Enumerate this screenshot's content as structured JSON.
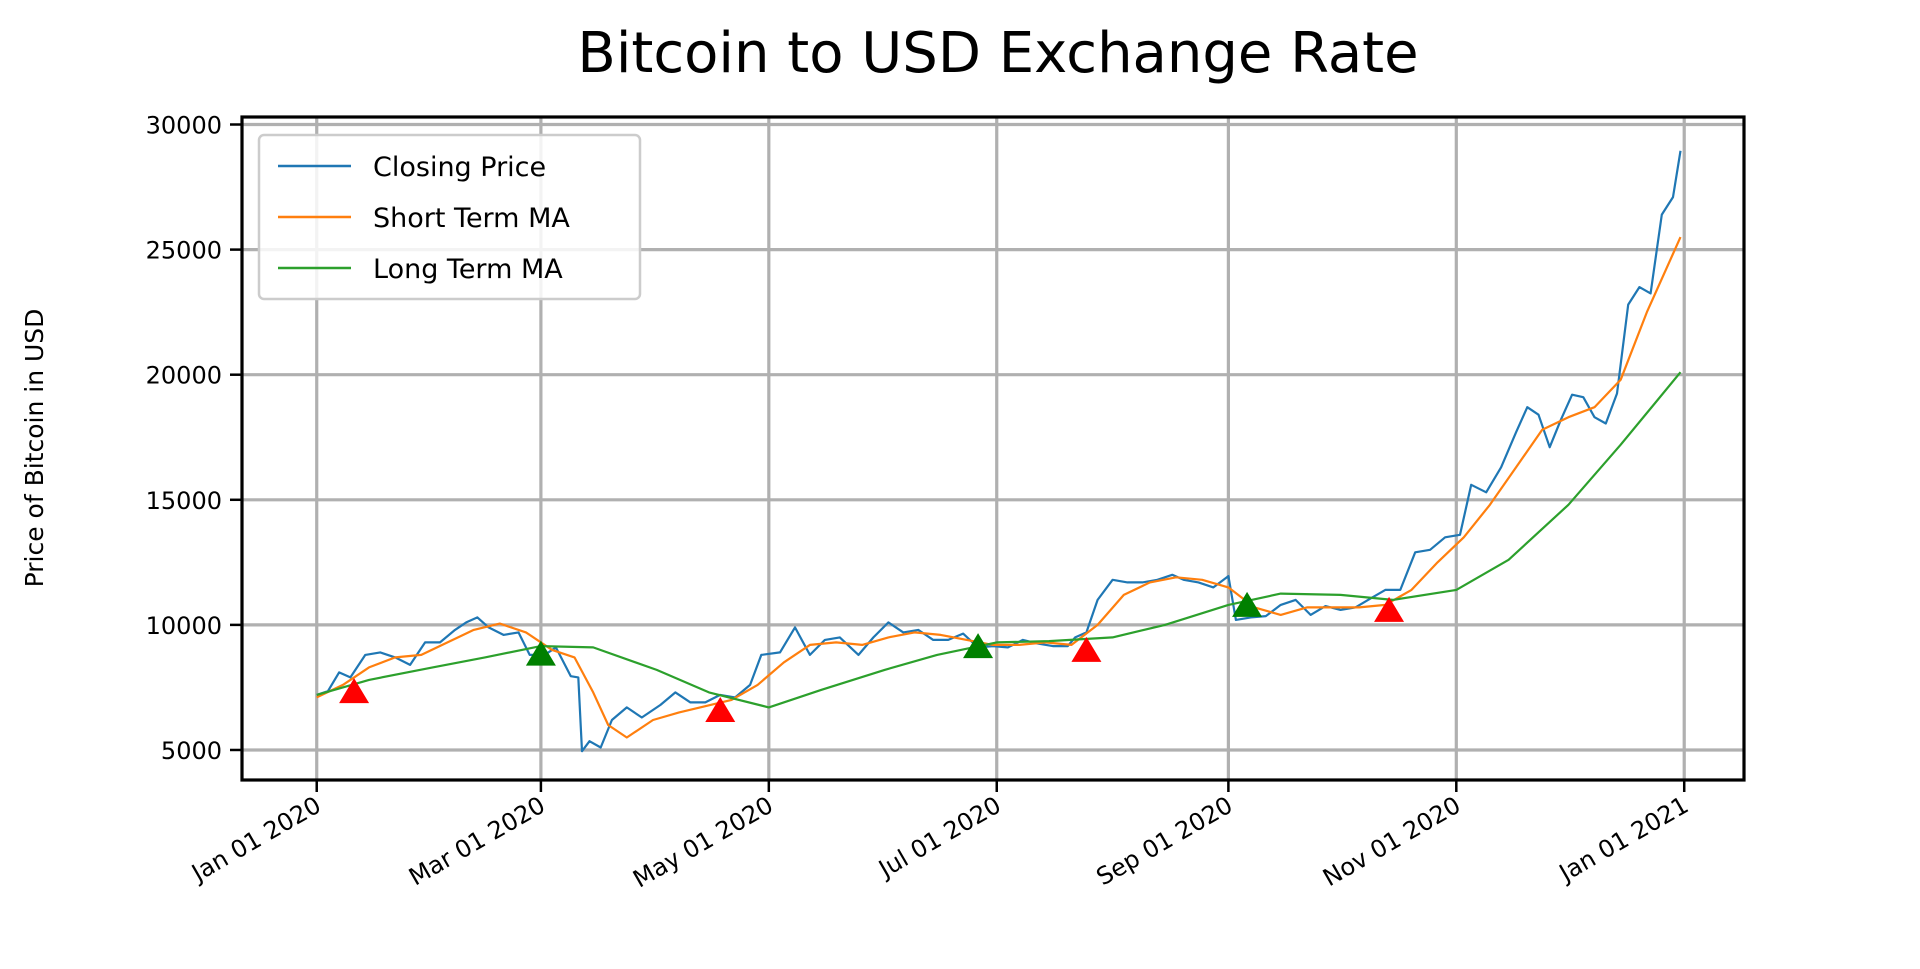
{
  "chart_data": {
    "type": "line",
    "title": "Bitcoin to USD Exchange Rate",
    "xlabel": "",
    "ylabel": "Price of Bitcoin in USD",
    "xlim": [
      "2019-12-12",
      "2021-01-17"
    ],
    "ylim": [
      3800,
      30300
    ],
    "grid": true,
    "legend_position": "top-left",
    "x_ticks": [
      {
        "date": "2020-01-01",
        "label": "Jan 01 2020"
      },
      {
        "date": "2020-03-01",
        "label": "Mar 01 2020"
      },
      {
        "date": "2020-05-01",
        "label": "May 01 2020"
      },
      {
        "date": "2020-07-01",
        "label": "Jul 01 2020"
      },
      {
        "date": "2020-09-01",
        "label": "Sep 01 2020"
      },
      {
        "date": "2020-11-01",
        "label": "Nov 01 2020"
      },
      {
        "date": "2021-01-01",
        "label": "Jan 01 2021"
      }
    ],
    "y_ticks": [
      5000,
      10000,
      15000,
      20000,
      25000,
      30000
    ],
    "series": [
      {
        "name": "Closing Price",
        "color": "#1f77b4",
        "points": [
          [
            "2020-01-01",
            7200
          ],
          [
            "2020-01-04",
            7350
          ],
          [
            "2020-01-07",
            8100
          ],
          [
            "2020-01-10",
            7900
          ],
          [
            "2020-01-14",
            8800
          ],
          [
            "2020-01-18",
            8900
          ],
          [
            "2020-01-22",
            8700
          ],
          [
            "2020-01-26",
            8400
          ],
          [
            "2020-01-30",
            9300
          ],
          [
            "2020-02-03",
            9300
          ],
          [
            "2020-02-07",
            9800
          ],
          [
            "2020-02-10",
            10100
          ],
          [
            "2020-02-13",
            10300
          ],
          [
            "2020-02-16",
            9900
          ],
          [
            "2020-02-20",
            9600
          ],
          [
            "2020-02-24",
            9700
          ],
          [
            "2020-02-27",
            8800
          ],
          [
            "2020-03-02",
            8800
          ],
          [
            "2020-03-05",
            9100
          ],
          [
            "2020-03-09",
            7950
          ],
          [
            "2020-03-11",
            7900
          ],
          [
            "2020-03-12",
            4950
          ],
          [
            "2020-03-14",
            5350
          ],
          [
            "2020-03-17",
            5100
          ],
          [
            "2020-03-20",
            6200
          ],
          [
            "2020-03-24",
            6700
          ],
          [
            "2020-03-28",
            6300
          ],
          [
            "2020-04-02",
            6800
          ],
          [
            "2020-04-06",
            7300
          ],
          [
            "2020-04-10",
            6900
          ],
          [
            "2020-04-14",
            6900
          ],
          [
            "2020-04-18",
            7200
          ],
          [
            "2020-04-22",
            7100
          ],
          [
            "2020-04-26",
            7600
          ],
          [
            "2020-04-29",
            8800
          ],
          [
            "2020-05-04",
            8900
          ],
          [
            "2020-05-08",
            9900
          ],
          [
            "2020-05-12",
            8800
          ],
          [
            "2020-05-16",
            9400
          ],
          [
            "2020-05-20",
            9500
          ],
          [
            "2020-05-25",
            8800
          ],
          [
            "2020-05-29",
            9500
          ],
          [
            "2020-06-02",
            10100
          ],
          [
            "2020-06-06",
            9700
          ],
          [
            "2020-06-10",
            9800
          ],
          [
            "2020-06-14",
            9400
          ],
          [
            "2020-06-18",
            9400
          ],
          [
            "2020-06-22",
            9650
          ],
          [
            "2020-06-26",
            9100
          ],
          [
            "2020-06-30",
            9150
          ],
          [
            "2020-07-04",
            9100
          ],
          [
            "2020-07-08",
            9400
          ],
          [
            "2020-07-12",
            9250
          ],
          [
            "2020-07-16",
            9150
          ],
          [
            "2020-07-20",
            9150
          ],
          [
            "2020-07-22",
            9500
          ],
          [
            "2020-07-25",
            9700
          ],
          [
            "2020-07-28",
            11000
          ],
          [
            "2020-08-01",
            11800
          ],
          [
            "2020-08-05",
            11700
          ],
          [
            "2020-08-09",
            11700
          ],
          [
            "2020-08-13",
            11800
          ],
          [
            "2020-08-17",
            12000
          ],
          [
            "2020-08-20",
            11800
          ],
          [
            "2020-08-24",
            11700
          ],
          [
            "2020-08-28",
            11500
          ],
          [
            "2020-09-01",
            11950
          ],
          [
            "2020-09-03",
            10200
          ],
          [
            "2020-09-07",
            10300
          ],
          [
            "2020-09-11",
            10350
          ],
          [
            "2020-09-15",
            10800
          ],
          [
            "2020-09-19",
            11000
          ],
          [
            "2020-09-23",
            10400
          ],
          [
            "2020-09-27",
            10750
          ],
          [
            "2020-10-01",
            10600
          ],
          [
            "2020-10-05",
            10700
          ],
          [
            "2020-10-09",
            11050
          ],
          [
            "2020-10-13",
            11400
          ],
          [
            "2020-10-17",
            11400
          ],
          [
            "2020-10-21",
            12900
          ],
          [
            "2020-10-25",
            13000
          ],
          [
            "2020-10-29",
            13500
          ],
          [
            "2020-11-02",
            13600
          ],
          [
            "2020-11-05",
            15600
          ],
          [
            "2020-11-09",
            15300
          ],
          [
            "2020-11-13",
            16300
          ],
          [
            "2020-11-17",
            17700
          ],
          [
            "2020-11-20",
            18700
          ],
          [
            "2020-11-23",
            18400
          ],
          [
            "2020-11-26",
            17100
          ],
          [
            "2020-11-29",
            18200
          ],
          [
            "2020-12-02",
            19200
          ],
          [
            "2020-12-05",
            19100
          ],
          [
            "2020-12-08",
            18300
          ],
          [
            "2020-12-11",
            18050
          ],
          [
            "2020-12-14",
            19250
          ],
          [
            "2020-12-17",
            22800
          ],
          [
            "2020-12-20",
            23500
          ],
          [
            "2020-12-23",
            23250
          ],
          [
            "2020-12-26",
            26400
          ],
          [
            "2020-12-29",
            27100
          ],
          [
            "2020-12-31",
            28950
          ]
        ]
      },
      {
        "name": "Short Term MA",
        "color": "#ff7f0e",
        "points": [
          [
            "2020-01-01",
            7100
          ],
          [
            "2020-01-08",
            7600
          ],
          [
            "2020-01-15",
            8300
          ],
          [
            "2020-01-22",
            8700
          ],
          [
            "2020-01-29",
            8800
          ],
          [
            "2020-02-05",
            9300
          ],
          [
            "2020-02-12",
            9800
          ],
          [
            "2020-02-19",
            10050
          ],
          [
            "2020-02-26",
            9700
          ],
          [
            "2020-03-04",
            9000
          ],
          [
            "2020-03-10",
            8700
          ],
          [
            "2020-03-15",
            7300
          ],
          [
            "2020-03-19",
            6000
          ],
          [
            "2020-03-24",
            5500
          ],
          [
            "2020-03-31",
            6200
          ],
          [
            "2020-04-07",
            6500
          ],
          [
            "2020-04-14",
            6750
          ],
          [
            "2020-04-21",
            7000
          ],
          [
            "2020-04-28",
            7600
          ],
          [
            "2020-05-05",
            8500
          ],
          [
            "2020-05-12",
            9200
          ],
          [
            "2020-05-19",
            9300
          ],
          [
            "2020-05-26",
            9200
          ],
          [
            "2020-06-02",
            9500
          ],
          [
            "2020-06-09",
            9700
          ],
          [
            "2020-06-16",
            9600
          ],
          [
            "2020-06-23",
            9400
          ],
          [
            "2020-06-30",
            9200
          ],
          [
            "2020-07-07",
            9200
          ],
          [
            "2020-07-14",
            9300
          ],
          [
            "2020-07-21",
            9200
          ],
          [
            "2020-07-28",
            10000
          ],
          [
            "2020-08-04",
            11200
          ],
          [
            "2020-08-11",
            11700
          ],
          [
            "2020-08-18",
            11900
          ],
          [
            "2020-08-25",
            11800
          ],
          [
            "2020-09-01",
            11500
          ],
          [
            "2020-09-08",
            10700
          ],
          [
            "2020-09-15",
            10400
          ],
          [
            "2020-09-22",
            10700
          ],
          [
            "2020-09-29",
            10700
          ],
          [
            "2020-10-06",
            10700
          ],
          [
            "2020-10-13",
            10800
          ],
          [
            "2020-10-20",
            11400
          ],
          [
            "2020-10-27",
            12500
          ],
          [
            "2020-11-03",
            13500
          ],
          [
            "2020-11-10",
            14800
          ],
          [
            "2020-11-17",
            16300
          ],
          [
            "2020-11-24",
            17800
          ],
          [
            "2020-12-01",
            18300
          ],
          [
            "2020-12-08",
            18700
          ],
          [
            "2020-12-15",
            19800
          ],
          [
            "2020-12-22",
            22500
          ],
          [
            "2020-12-31",
            25500
          ]
        ]
      },
      {
        "name": "Long Term MA",
        "color": "#2ca02c",
        "points": [
          [
            "2020-01-01",
            7200
          ],
          [
            "2020-01-15",
            7800
          ],
          [
            "2020-02-01",
            8300
          ],
          [
            "2020-02-15",
            8700
          ],
          [
            "2020-03-01",
            9150
          ],
          [
            "2020-03-15",
            9100
          ],
          [
            "2020-04-01",
            8200
          ],
          [
            "2020-04-15",
            7300
          ],
          [
            "2020-05-01",
            6700
          ],
          [
            "2020-05-15",
            7400
          ],
          [
            "2020-06-01",
            8200
          ],
          [
            "2020-06-15",
            8800
          ],
          [
            "2020-07-01",
            9300
          ],
          [
            "2020-07-15",
            9350
          ],
          [
            "2020-08-01",
            9500
          ],
          [
            "2020-08-15",
            10000
          ],
          [
            "2020-09-01",
            10800
          ],
          [
            "2020-09-15",
            11250
          ],
          [
            "2020-10-01",
            11200
          ],
          [
            "2020-10-15",
            11000
          ],
          [
            "2020-11-01",
            11400
          ],
          [
            "2020-11-15",
            12600
          ],
          [
            "2020-12-01",
            14800
          ],
          [
            "2020-12-15",
            17200
          ],
          [
            "2020-12-31",
            20100
          ]
        ]
      }
    ],
    "signals": [
      {
        "date": "2020-01-11",
        "value": 7350,
        "color": "#ff0000"
      },
      {
        "date": "2020-03-01",
        "value": 8850,
        "color": "#008000"
      },
      {
        "date": "2020-04-18",
        "value": 6600,
        "color": "#ff0000"
      },
      {
        "date": "2020-06-26",
        "value": 9150,
        "color": "#008000"
      },
      {
        "date": "2020-07-25",
        "value": 9000,
        "color": "#ff0000"
      },
      {
        "date": "2020-09-06",
        "value": 10800,
        "color": "#008000"
      },
      {
        "date": "2020-10-14",
        "value": 10600,
        "color": "#ff0000"
      }
    ]
  },
  "colors": {
    "grid": "#b0b0b0",
    "axes": "#000000",
    "legend_border": "#cccccc"
  }
}
